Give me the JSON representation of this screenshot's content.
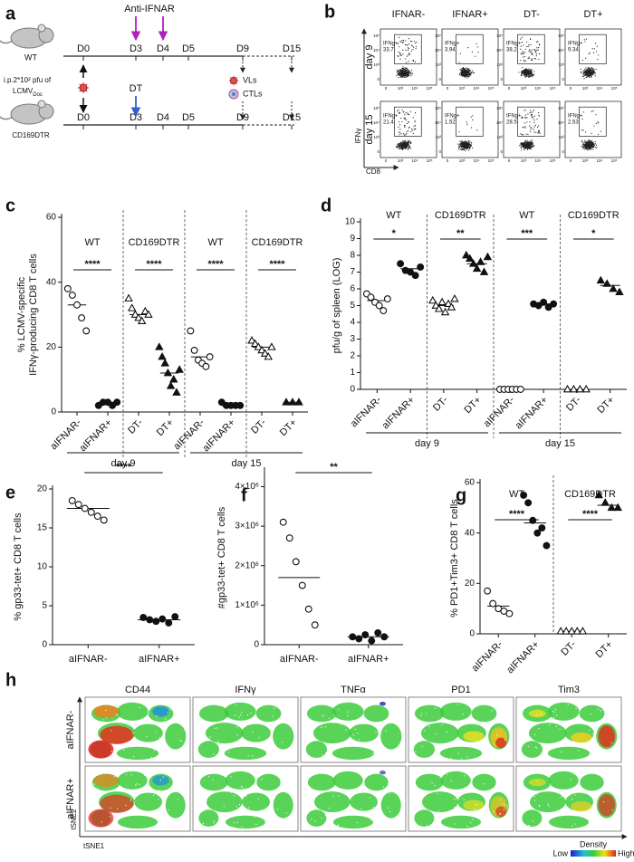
{
  "panel_a": {
    "letter": "a",
    "treatment_top": "Anti-IFNAR",
    "top_mouse": "WT",
    "top_days": [
      "D0",
      "D3",
      "D4",
      "D5",
      "D9",
      "D15"
    ],
    "infection": "i.p.2*10² pfu of",
    "virus": "LCMV",
    "virus_sub": "Doc",
    "treatment_bottom": "DT",
    "bottom_mouse": "CD169DTR",
    "bottom_days": [
      "D0",
      "D3",
      "D4",
      "D5",
      "D9",
      "D15"
    ],
    "readouts": [
      "VLs",
      "CTLs"
    ]
  },
  "panel_b": {
    "letter": "b",
    "columns": [
      "IFNAR-",
      "IFNAR+",
      "DT-",
      "DT+"
    ],
    "rows": [
      "day 9",
      "day 15"
    ],
    "gate_label": "IFNg+",
    "gates": [
      [
        33.7,
        3.94,
        38.2,
        9.34
      ],
      [
        21.4,
        1.52,
        28.5,
        2.53
      ]
    ],
    "y_axis": "IFNγ",
    "x_axis": "CD8",
    "axis_ticks": [
      "0",
      "10³",
      "10⁴",
      "10⁵"
    ]
  },
  "chart_data": [
    {
      "type": "dot",
      "panel": "c",
      "ylabel": [
        "% LCMV-specific",
        "IFNγ-producing CD8 T cells"
      ],
      "categories": [
        "aIFNAR-",
        "aIFNAR+",
        "DT-",
        "DT+",
        "aIFNAR-",
        "aIFNAR+",
        "DT-",
        "DT+"
      ],
      "markers": [
        "circle-open",
        "circle",
        "triangle-open",
        "triangle",
        "circle-open",
        "circle",
        "triangle-open",
        "triangle"
      ],
      "values": [
        [
          38,
          36,
          33,
          29,
          25
        ],
        [
          2,
          3,
          3,
          2,
          3
        ],
        [
          35,
          32,
          30,
          29,
          28,
          31,
          30
        ],
        [
          20,
          17,
          15,
          12,
          8,
          10,
          6,
          13
        ],
        [
          25,
          19,
          16,
          15,
          14,
          17
        ],
        [
          3,
          2,
          2,
          2,
          2
        ],
        [
          22,
          21,
          20,
          19,
          18,
          17,
          20
        ],
        [
          3,
          3,
          3
        ]
      ],
      "means": [
        33,
        3,
        30,
        12,
        17,
        2,
        20,
        3
      ],
      "group_labels": [
        "WT",
        "CD169DTR",
        "WT",
        "CD169DTR"
      ],
      "significance": [
        "****",
        "****",
        "****",
        "****"
      ],
      "day_labels": [
        "day 9",
        "day 15"
      ],
      "ylim": [
        0,
        60
      ],
      "yticks": [
        0,
        20,
        40,
        60
      ]
    },
    {
      "type": "dot",
      "panel": "d",
      "ylabel": [
        "pfu/g of spleen (LOG)"
      ],
      "categories": [
        "aIFNAR-",
        "aIFNAR+",
        "DT-",
        "DT+",
        "aIFNAR-",
        "aIFNAR+",
        "DT-",
        "DT+"
      ],
      "markers": [
        "circle-open",
        "circle",
        "triangle-open",
        "triangle",
        "circle-open",
        "circle",
        "triangle-open",
        "triangle"
      ],
      "values": [
        [
          5.7,
          5.5,
          5.2,
          5.0,
          4.7,
          5.4
        ],
        [
          7.5,
          7.1,
          7.0,
          6.8,
          7.3
        ],
        [
          5.3,
          5.0,
          4.8,
          5.2,
          4.6,
          5.1,
          4.9,
          5.4
        ],
        [
          8.0,
          7.8,
          7.5,
          7.2,
          7.6,
          7.0,
          7.9
        ],
        [
          0,
          0,
          0,
          0,
          0,
          0
        ],
        [
          5.1,
          5.0,
          5.2,
          4.9,
          5.1
        ],
        [
          0,
          0,
          0,
          0
        ],
        [
          6.5,
          6.3,
          6.0,
          5.8
        ]
      ],
      "means": [
        5.3,
        7.2,
        5.0,
        7.5,
        0,
        5.1,
        0,
        6.2
      ],
      "group_labels": [
        "WT",
        "CD169DTR",
        "WT",
        "CD169DTR"
      ],
      "significance": [
        "*",
        "**",
        "***",
        "*"
      ],
      "day_labels": [
        "day 9",
        "day 15"
      ],
      "ylim": [
        0,
        10
      ],
      "yticks": [
        0,
        1,
        2,
        3,
        4,
        5,
        6,
        7,
        8,
        9,
        10
      ]
    },
    {
      "type": "dot",
      "panel": "e",
      "ylabel": [
        "% gp33-tet+ CD8 T cells"
      ],
      "categories": [
        "aIFNAR-",
        "aIFNAR+"
      ],
      "markers": [
        "circle-open",
        "circle"
      ],
      "values": [
        [
          18.5,
          18,
          17.5,
          17,
          16.5,
          16
        ],
        [
          3.5,
          3.2,
          3,
          3.3,
          2.8,
          3.6
        ]
      ],
      "means": [
        17.5,
        3.2
      ],
      "significance": [
        "****"
      ],
      "ylim": [
        0,
        20
      ],
      "yticks": [
        0,
        5,
        10,
        15,
        20
      ]
    },
    {
      "type": "dot",
      "panel": "f",
      "ylabel": [
        "#gp33-tet+ CD8 T cells"
      ],
      "categories": [
        "aIFNAR-",
        "aIFNAR+"
      ],
      "markers": [
        "circle-open",
        "circle"
      ],
      "values": [
        [
          3100000,
          2700000,
          2100000,
          1500000,
          900000,
          500000
        ],
        [
          200000,
          150000,
          250000,
          100000,
          300000,
          200000
        ]
      ],
      "means": [
        1700000,
        200000
      ],
      "significance": [
        "**"
      ],
      "ylim": [
        0,
        4400000
      ],
      "yticks": [
        0,
        {
          "value": 1000000,
          "label": "1×10⁶"
        },
        {
          "value": 2000000,
          "label": "2×10⁶"
        },
        {
          "value": 3000000,
          "label": "3×10⁶"
        },
        {
          "value": 4000000,
          "label": "4×10⁶"
        }
      ]
    },
    {
      "type": "dot",
      "panel": "g",
      "ylabel": [
        "% PD1+Tim3+ CD8 T cells"
      ],
      "categories": [
        "aIFNAR-",
        "aIFNAR+",
        "DT-",
        "DT+"
      ],
      "markers": [
        "circle-open",
        "circle",
        "triangle-open",
        "triangle"
      ],
      "values": [
        [
          17,
          12,
          10,
          9,
          8
        ],
        [
          55,
          52,
          45,
          40,
          42,
          35
        ],
        [
          1,
          1,
          1,
          1,
          1
        ],
        [
          55,
          52,
          50,
          50
        ]
      ],
      "means": [
        11,
        44,
        1,
        51
      ],
      "group_labels": [
        "WT",
        "CD169DTR"
      ],
      "significance": [
        "****",
        "****"
      ],
      "ylim": [
        0,
        60
      ],
      "yticks": [
        0,
        20,
        40,
        60
      ]
    }
  ],
  "panel_h": {
    "letter": "h",
    "markers": [
      "CD44",
      "IFNγ",
      "TNFα",
      "PD1",
      "Tim3"
    ],
    "rows": [
      "aIFNAR-",
      "aIFNAR+"
    ],
    "x_axis": "tSNE1",
    "y_axis": "tSNE2",
    "legend_title": "Density",
    "legend_low": "Low",
    "legend_high": "High"
  }
}
